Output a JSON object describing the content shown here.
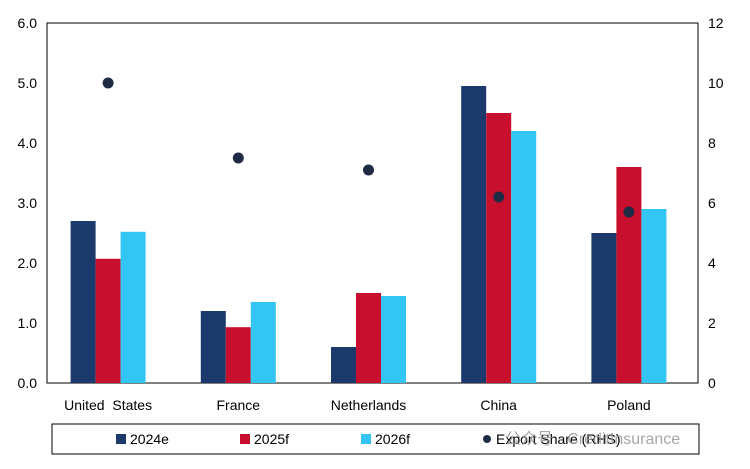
{
  "chart_data": {
    "type": "bar",
    "categories": [
      "United  States",
      "France",
      "Netherlands",
      "China",
      "Poland"
    ],
    "series": [
      {
        "name": "2024e",
        "values": [
          2.7,
          1.2,
          0.6,
          4.95,
          2.5
        ],
        "color": "#1b3a6b"
      },
      {
        "name": "2025f",
        "values": [
          2.07,
          0.93,
          1.5,
          4.5,
          3.6
        ],
        "color": "#c8102e"
      },
      {
        "name": "2026f",
        "values": [
          2.52,
          1.35,
          1.45,
          4.2,
          2.9
        ],
        "color": "#33c5f3"
      }
    ],
    "overlay_series": {
      "name": "Export Share (RHS)",
      "type": "scatter",
      "axis": "right",
      "values": [
        10.0,
        7.5,
        7.1,
        6.2,
        5.7
      ],
      "color": "#1f2a44"
    },
    "y_left": {
      "lim": [
        0,
        6
      ],
      "ticks": [
        "0.0",
        "1.0",
        "2.0",
        "3.0",
        "4.0",
        "5.0",
        "6.0"
      ]
    },
    "y_right": {
      "lim": [
        0,
        12
      ],
      "ticks": [
        "0",
        "2",
        "4",
        "6",
        "8",
        "10",
        "12"
      ]
    },
    "grid": false,
    "legend_position": "bottom"
  },
  "watermark": "公众号 · CreditInsurance"
}
